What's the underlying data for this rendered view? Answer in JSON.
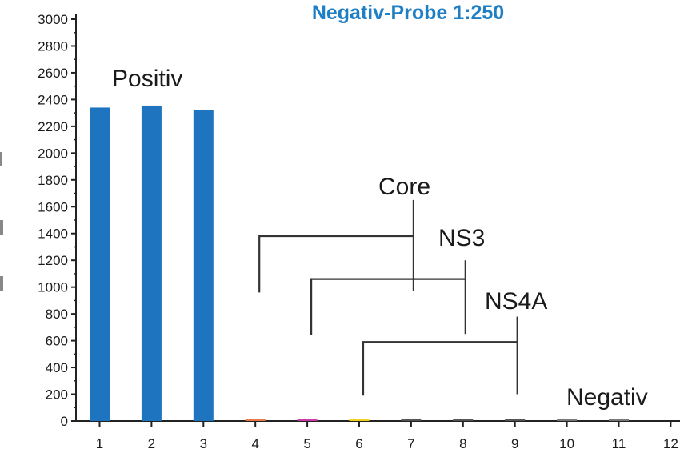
{
  "chart_data": {
    "type": "bar",
    "title": "Negativ-Probe  1:250",
    "ylabel": "",
    "xlabel": "",
    "ylim": [
      0,
      3000
    ],
    "yticks": [
      0,
      200,
      400,
      600,
      800,
      1000,
      1200,
      1400,
      1600,
      1800,
      2000,
      2200,
      2400,
      2600,
      2800,
      3000
    ],
    "categories": [
      "1",
      "2",
      "3",
      "4",
      "5",
      "6",
      "7",
      "8",
      "9",
      "10",
      "11",
      "12"
    ],
    "values": [
      2340,
      2355,
      2320,
      8,
      8,
      8,
      4,
      4,
      4,
      2,
      2,
      0
    ],
    "colors": [
      "#1e74bf",
      "#1e74bf",
      "#1e74bf",
      "#e87a4a",
      "#cc3aa8",
      "#f0d020",
      "#555555",
      "#555555",
      "#555555",
      "#777777",
      "#777777",
      "#777777"
    ],
    "annotations": {
      "positiv": "Positiv",
      "core": "Core",
      "ns3": "NS3",
      "ns4a": "NS4A",
      "negativ": "Negativ"
    },
    "brackets": [
      {
        "label": "Core",
        "from_category": "4",
        "to_category": "7",
        "bar_level": 1380,
        "left_bottom": 960,
        "right_top": 1650,
        "right_bottom": 970
      },
      {
        "label": "NS3",
        "from_category": "5",
        "to_category": "8",
        "bar_level": 1060,
        "left_bottom": 640,
        "right_top": 1200,
        "right_bottom": 650
      },
      {
        "label": "NS4A",
        "from_category": "6",
        "to_category": "9",
        "bar_level": 590,
        "left_bottom": 190,
        "right_top": 780,
        "right_bottom": 200
      }
    ]
  }
}
